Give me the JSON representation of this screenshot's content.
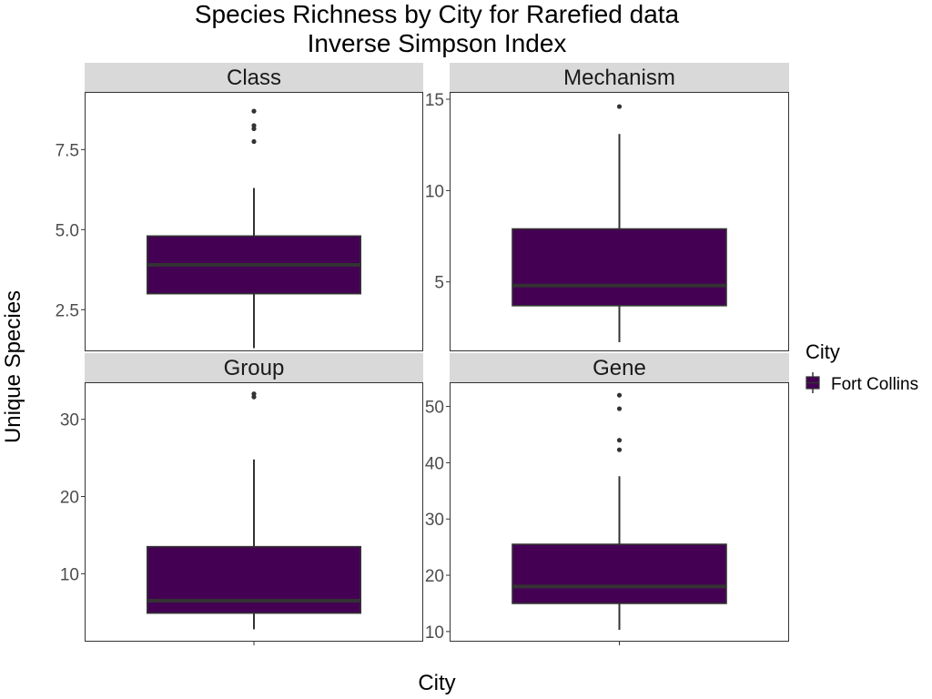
{
  "chart_data": {
    "type": "box",
    "title": "Species Richness by City for Rarefied data",
    "subtitle": "Inverse Simpson Index",
    "xlabel": "City",
    "ylabel": "Unique Species",
    "legend": {
      "title": "City",
      "entries": [
        "Fort Collins"
      ],
      "placement": "right"
    },
    "colors": {
      "fill": "#440154",
      "line": "#333333",
      "strip_bg": "#d9d9d9",
      "panel_border": "#333333"
    },
    "grid": false,
    "panels": [
      {
        "name": "Class",
        "ylim": [
          1.2,
          9.3
        ],
        "yticks": [
          2.5,
          5.0,
          7.5
        ],
        "ytick_labels": [
          "2.5",
          "5.0",
          "7.5"
        ],
        "series": [
          {
            "category": "Fort Collins",
            "whisker_low": 1.3,
            "q1": 3.0,
            "median": 3.9,
            "q3": 4.8,
            "whisker_high": 6.3,
            "outliers": [
              7.75,
              8.15,
              8.25,
              8.7
            ]
          }
        ]
      },
      {
        "name": "Mechanism",
        "ylim": [
          1.2,
          15.4
        ],
        "yticks": [
          5,
          10,
          15
        ],
        "ytick_labels": [
          "5",
          "10",
          "15"
        ],
        "series": [
          {
            "category": "Fort Collins",
            "whisker_low": 1.7,
            "q1": 3.7,
            "median": 4.8,
            "q3": 7.9,
            "whisker_high": 13.1,
            "outliers": [
              14.6
            ]
          }
        ]
      },
      {
        "name": "Group",
        "ylim": [
          1.2,
          34.8
        ],
        "yticks": [
          10,
          20,
          30
        ],
        "ytick_labels": [
          "10",
          "20",
          "30"
        ],
        "series": [
          {
            "category": "Fort Collins",
            "whisker_low": 2.8,
            "q1": 4.9,
            "median": 6.5,
            "q3": 13.5,
            "whisker_high": 24.8,
            "outliers": [
              32.9,
              33.3
            ]
          }
        ]
      },
      {
        "name": "Gene",
        "ylim": [
          8.2,
          54.3
        ],
        "yticks": [
          10,
          20,
          30,
          40,
          50
        ],
        "ytick_labels": [
          "10",
          "20",
          "30",
          "40",
          "50"
        ],
        "series": [
          {
            "category": "Fort Collins",
            "whisker_low": 10.3,
            "q1": 15.0,
            "median": 18.0,
            "q3": 25.5,
            "whisker_high": 37.6,
            "outliers": [
              42.3,
              44.0,
              49.6,
              52.0
            ]
          }
        ]
      }
    ]
  }
}
